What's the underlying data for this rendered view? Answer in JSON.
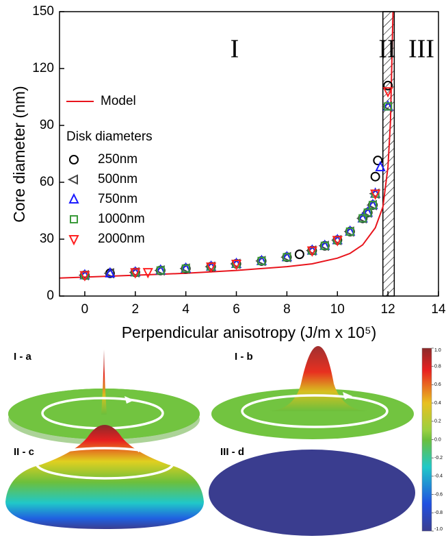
{
  "chart_data": {
    "type": "scatter",
    "x_label": "Perpendicular anisotropy (J/m x 10⁵)",
    "y_label": "Core diameter (nm)",
    "xlim": [
      -1,
      14
    ],
    "xticks": [
      0,
      2,
      4,
      6,
      8,
      10,
      12,
      14
    ],
    "ylim": [
      0,
      150
    ],
    "yticks": [
      0,
      30,
      60,
      90,
      120,
      150
    ],
    "legend_title": "Disk diameters",
    "legend_position": "left",
    "model": {
      "name": "Model",
      "color": "#e8141c",
      "x": [
        -1,
        0,
        2,
        4,
        6,
        8,
        9,
        10,
        10.5,
        11,
        11.5,
        11.8,
        12,
        12.1,
        12.2
      ],
      "values": [
        9.5,
        10,
        11,
        12,
        13.5,
        15.5,
        17,
        20,
        22.5,
        27,
        36,
        47,
        68,
        92,
        150
      ]
    },
    "shaded_region": [
      11.8,
      12.25
    ],
    "regions": [
      "I",
      "II",
      "III"
    ],
    "series": [
      {
        "name": "250nm",
        "color": "#000000",
        "marker": "circle",
        "x": [
          0,
          1,
          2,
          3,
          4,
          5,
          6,
          7,
          8,
          8.5,
          9,
          9.5,
          10,
          10.5,
          11,
          11.2,
          11.4,
          11.5,
          11.6,
          12
        ],
        "values": [
          11,
          12,
          12.5,
          13.5,
          14.5,
          15.5,
          17,
          18.5,
          20.5,
          22,
          24,
          26.5,
          29.5,
          34,
          41,
          44,
          48,
          63,
          71.5,
          111
        ]
      },
      {
        "name": "500nm",
        "color": "#444444",
        "marker": "triangle-left",
        "x": [
          0,
          1,
          2,
          3,
          4,
          5,
          6,
          7,
          8,
          9,
          9.5,
          10,
          10.5,
          11,
          11.2,
          11.4,
          11.5,
          12
        ],
        "values": [
          11,
          12,
          12.5,
          13.5,
          14.5,
          15.5,
          17,
          18.5,
          20.5,
          24,
          26.5,
          29.5,
          34,
          41,
          44,
          48,
          54,
          100
        ]
      },
      {
        "name": "750nm",
        "color": "#1a1aff",
        "marker": "triangle-up",
        "x": [
          0,
          1,
          2,
          3,
          4,
          5,
          6,
          7,
          8,
          9,
          9.5,
          10,
          10.5,
          11,
          11.2,
          11.4,
          11.5,
          11.7,
          12
        ],
        "values": [
          11,
          12,
          12.5,
          13.5,
          14.5,
          15.5,
          17,
          18.5,
          20.5,
          24,
          26.5,
          29.5,
          34,
          41,
          44,
          48,
          54,
          68,
          100
        ]
      },
      {
        "name": "1000nm",
        "color": "#3a9a3a",
        "marker": "square",
        "x": [
          0,
          2,
          3,
          4,
          5,
          6,
          7,
          8,
          9,
          9.5,
          10,
          10.5,
          11,
          11.2,
          11.4,
          11.5,
          12
        ],
        "values": [
          11,
          12.5,
          13.5,
          14.5,
          15.5,
          17,
          18.5,
          20.5,
          24,
          26.5,
          29.5,
          34,
          41,
          44,
          48,
          54,
          100
        ]
      },
      {
        "name": "2000nm",
        "color": "#ff2020",
        "marker": "triangle-down",
        "x": [
          0,
          2,
          2.5,
          5,
          6,
          9,
          10,
          11.5,
          12
        ],
        "values": [
          11,
          12.5,
          12.6,
          15.5,
          17,
          24,
          29.5,
          54,
          108
        ]
      }
    ]
  },
  "panels": {
    "labels": [
      "I - a",
      "I - b",
      "II - c",
      "III - d"
    ]
  },
  "colorbar": {
    "lim": [
      -1,
      1
    ],
    "ticks": [
      {
        "value": 1,
        "label": "1.0"
      },
      0.8,
      0.6,
      0.4,
      0.2,
      {
        "value": 0,
        "label": "0.0"
      },
      -0.2,
      -0.4,
      -0.6,
      -0.8,
      {
        "value": -1,
        "label": "-1.0"
      }
    ]
  }
}
